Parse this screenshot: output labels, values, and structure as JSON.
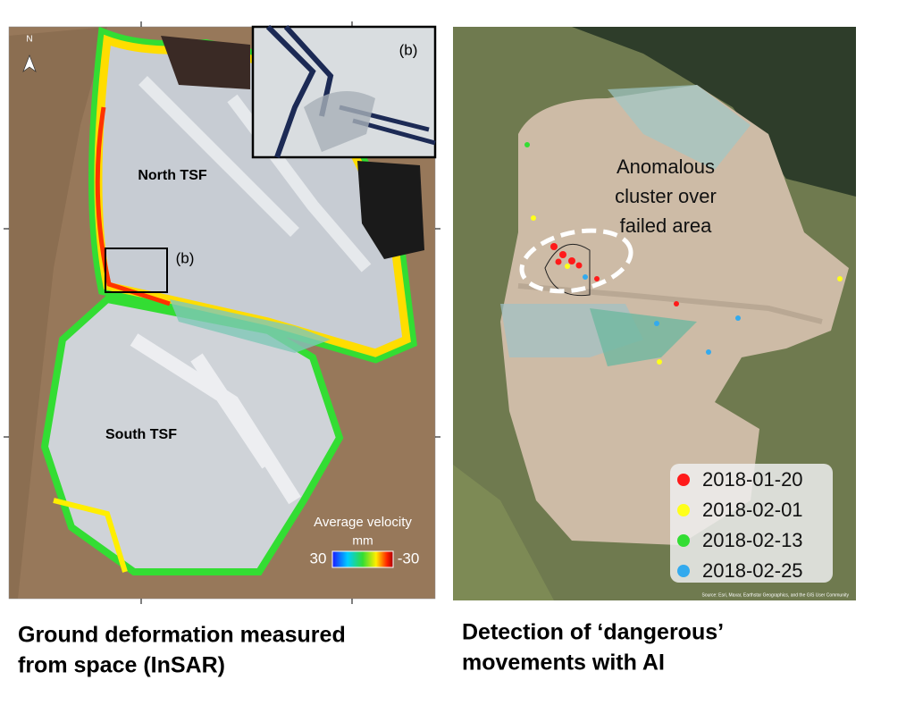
{
  "left_panel": {
    "north_arrow": "N",
    "inset_label": "(b)",
    "map_labels": [
      "North TSF",
      "South TSF"
    ],
    "box_label": "(b)",
    "colorbar": {
      "title": "Average velocity",
      "unit": "mm",
      "left_label": "30",
      "right_label": "-30"
    },
    "caption": [
      "Ground deformation measured",
      "from space (InSAR)"
    ]
  },
  "right_panel": {
    "annotation": [
      "Anomalous",
      "cluster over",
      "failed area"
    ],
    "legend": [
      {
        "label": "2018-01-20",
        "color": "#ff1a1a"
      },
      {
        "label": "2018-02-01",
        "color": "#ffff1a"
      },
      {
        "label": "2018-02-13",
        "color": "#33dd33"
      },
      {
        "label": "2018-02-25",
        "color": "#33aaee"
      }
    ],
    "attribution": "Source: Esri, Maxar, Earthstar Geographics, and the GIS User Community",
    "caption": [
      "Detection of ‘dangerous’",
      "movements with AI"
    ]
  }
}
